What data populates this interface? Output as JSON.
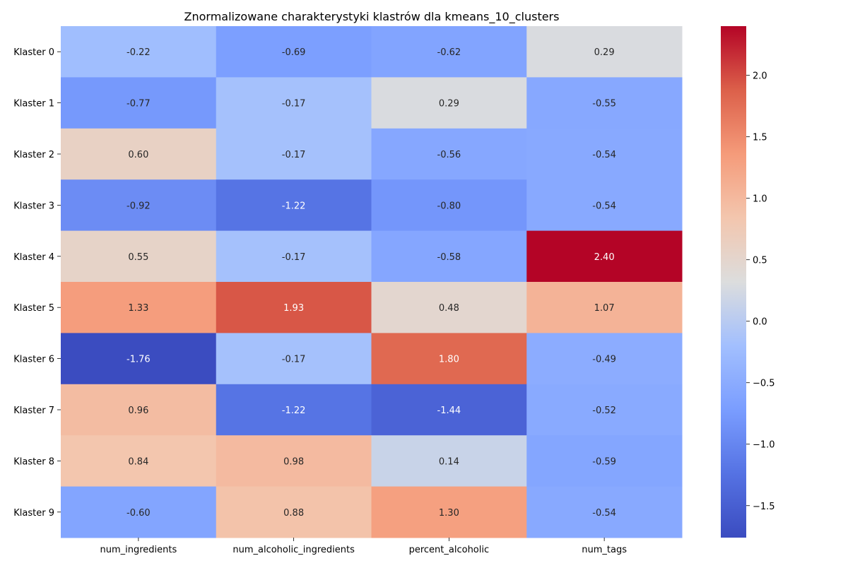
{
  "chart_data": {
    "type": "heatmap",
    "title": "Znormalizowane charakterystyki klastrów dla kmeans_10_clusters",
    "rows": [
      "Klaster 0",
      "Klaster 1",
      "Klaster 2",
      "Klaster 3",
      "Klaster 4",
      "Klaster 5",
      "Klaster 6",
      "Klaster 7",
      "Klaster 8",
      "Klaster 9"
    ],
    "columns": [
      "num_ingredients",
      "num_alcoholic_ingredients",
      "percent_alcoholic",
      "num_tags"
    ],
    "values": [
      [
        -0.22,
        -0.69,
        -0.62,
        0.29
      ],
      [
        -0.77,
        -0.17,
        0.29,
        -0.55
      ],
      [
        0.6,
        -0.17,
        -0.56,
        -0.54
      ],
      [
        -0.92,
        -1.22,
        -0.8,
        -0.54
      ],
      [
        0.55,
        -0.17,
        -0.58,
        2.4
      ],
      [
        1.33,
        1.93,
        0.48,
        1.07
      ],
      [
        -1.76,
        -0.17,
        1.8,
        -0.49
      ],
      [
        0.96,
        -1.22,
        -1.44,
        -0.52
      ],
      [
        0.84,
        0.98,
        0.14,
        -0.59
      ],
      [
        -0.6,
        0.88,
        1.3,
        -0.54
      ]
    ],
    "annotation_format": "0.00",
    "colormap": "coolwarm",
    "vmin": -1.76,
    "vmax": 2.4,
    "colorbar": {
      "ticks": [
        -1.5,
        -1.0,
        -0.5,
        0.0,
        0.5,
        1.0,
        1.5,
        2.0
      ],
      "tick_labels": [
        "−1.5",
        "−1.0",
        "−0.5",
        "0.0",
        "0.5",
        "1.0",
        "1.5",
        "2.0"
      ],
      "placement": "right"
    },
    "xlabel": "",
    "ylabel": ""
  }
}
